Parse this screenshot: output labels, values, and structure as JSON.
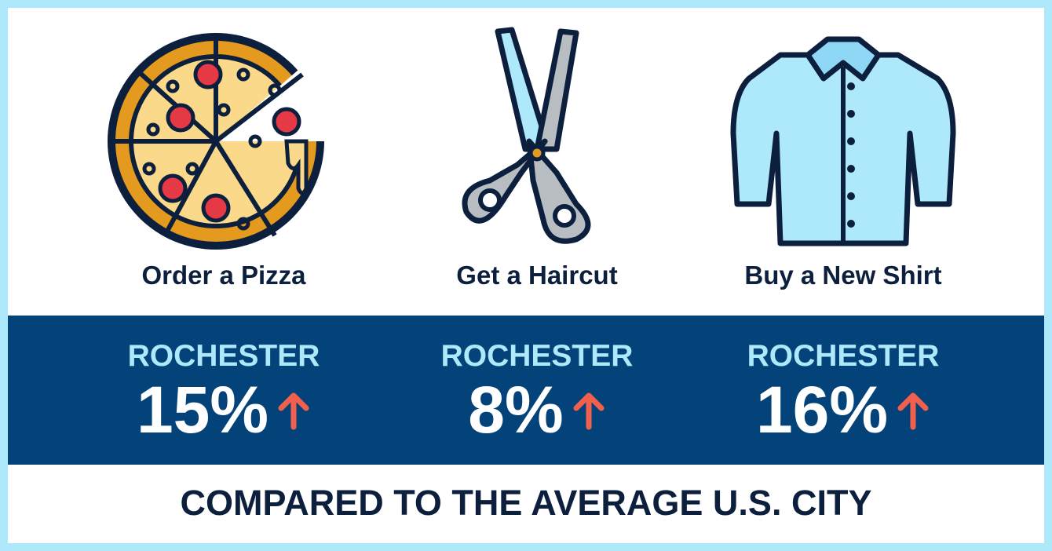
{
  "items": [
    {
      "label": "Order a Pizza",
      "city": "ROCHESTER",
      "percent": "15%",
      "icon": "pizza-icon",
      "direction": "up"
    },
    {
      "label": "Get a Haircut",
      "city": "ROCHESTER",
      "percent": "8%",
      "icon": "scissors-icon",
      "direction": "up"
    },
    {
      "label": "Buy a New Shirt",
      "city": "ROCHESTER",
      "percent": "16%",
      "icon": "shirt-icon",
      "direction": "up"
    }
  ],
  "footer": "COMPARED TO THE AVERAGE U.S. CITY",
  "colors": {
    "border": "#aee8fb",
    "band": "#03437a",
    "text": "#0c1f3d",
    "city": "#aee8fb",
    "arrow": "#f0604d"
  }
}
